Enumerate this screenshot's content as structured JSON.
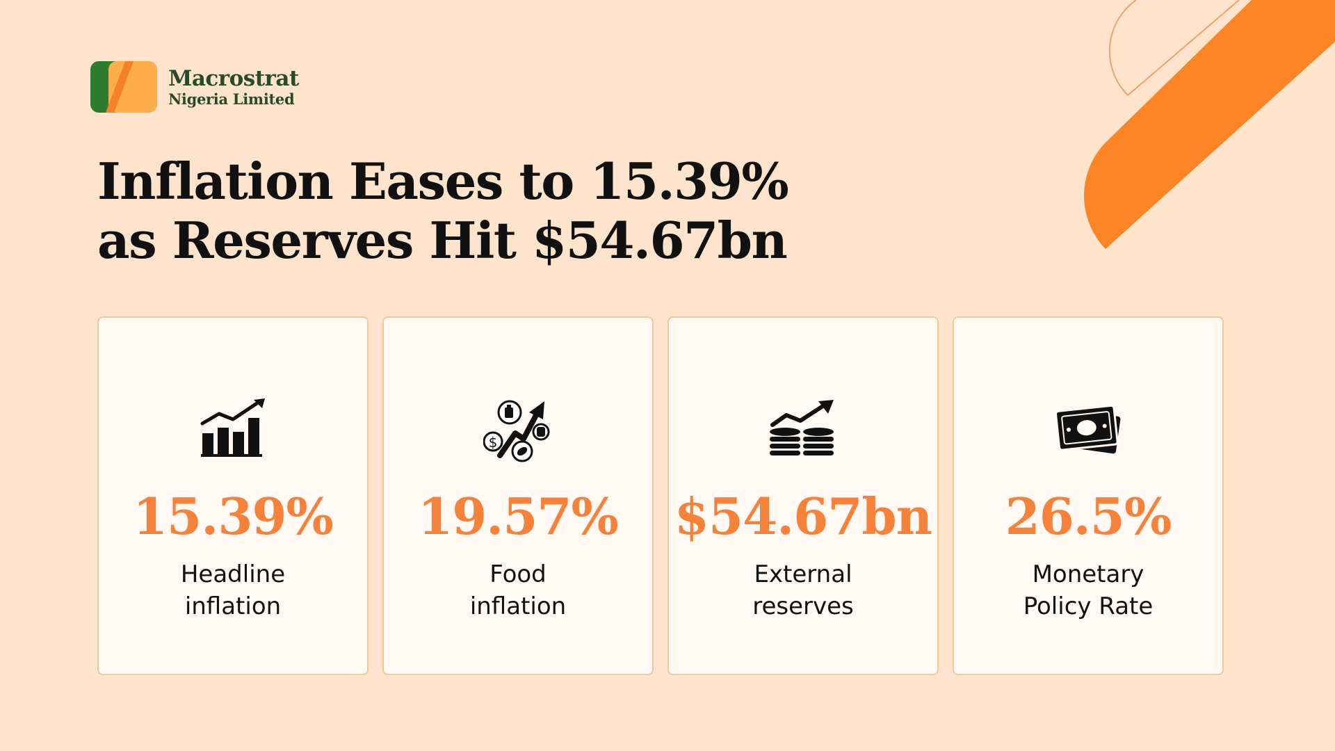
{
  "logo": {
    "name": "Macrostrat",
    "subtitle": "Nigeria Limited"
  },
  "headline": {
    "line1": "Inflation Eases to 15.39%",
    "line2": "as Reserves Hit $54.67bn"
  },
  "cards": [
    {
      "icon": "bar-chart-trend-icon",
      "value": "15.39%",
      "label_line1": "Headline",
      "label_line2": "inflation"
    },
    {
      "icon": "food-price-increase-icon",
      "value": "19.57%",
      "label_line1": "Food",
      "label_line2": "inflation"
    },
    {
      "icon": "coins-growth-icon",
      "value": "$54.67bn",
      "label_line1": "External",
      "label_line2": "reserves"
    },
    {
      "icon": "banknotes-icon",
      "value": "26.5%",
      "label_line1": "Monetary",
      "label_line2": "Policy Rate"
    }
  ],
  "colors": {
    "background": "#fee4cd",
    "accent": "#f5823a",
    "brand_green": "#2e7d2e",
    "brand_orange": "#fdae4b",
    "card_border": "#f3c79d"
  }
}
